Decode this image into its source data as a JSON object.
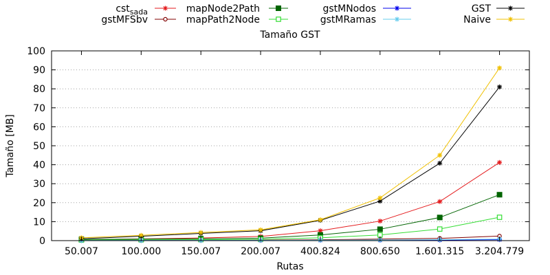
{
  "chart_data": {
    "type": "line",
    "title": "Tamaño GST",
    "xlabel": "Rutas",
    "ylabel": "Tamaño [MB]",
    "categories": [
      "50.007",
      "100.000",
      "150.007",
      "200.007",
      "400.824",
      "800.650",
      "1.601.315",
      "3.204.779"
    ],
    "ylim": [
      0,
      100
    ],
    "yticks": [
      0,
      10,
      20,
      30,
      40,
      50,
      60,
      70,
      80,
      90,
      100
    ],
    "grid": "y",
    "legend_position": "top",
    "series": [
      {
        "name": "cst_sada",
        "label_base": "cst",
        "label_sub": "sada",
        "color": "#e41a1c",
        "marker": "star",
        "values": [
          0.5,
          0.9,
          1.4,
          2.2,
          5.2,
          10.3,
          20.6,
          41.2
        ]
      },
      {
        "name": "gstMFSbv",
        "color": "#800000",
        "marker": "circle-open",
        "values": [
          0.1,
          0.15,
          0.2,
          0.25,
          0.5,
          0.8,
          1.2,
          2.4
        ]
      },
      {
        "name": "mapNode2Path",
        "color": "#006400",
        "marker": "square-filled",
        "values": [
          0.6,
          0.8,
          1.0,
          1.3,
          3.0,
          6.0,
          12.2,
          24.2
        ]
      },
      {
        "name": "mapPath2Node",
        "color": "#33dd33",
        "marker": "square-open",
        "values": [
          0.3,
          0.4,
          0.5,
          0.7,
          1.5,
          3.0,
          6.1,
          12.3
        ]
      },
      {
        "name": "gstMNodos",
        "color": "#0000ee",
        "marker": "star",
        "values": [
          0.05,
          0.08,
          0.1,
          0.12,
          0.15,
          0.2,
          0.3,
          0.5
        ]
      },
      {
        "name": "gstMRamas",
        "color": "#66ccee",
        "marker": "star",
        "values": [
          0.08,
          0.1,
          0.12,
          0.15,
          0.25,
          0.35,
          0.5,
          0.8
        ]
      },
      {
        "name": "GST",
        "color": "#000000",
        "marker": "star",
        "values": [
          1.0,
          2.3,
          3.8,
          5.2,
          10.7,
          20.8,
          40.8,
          81.0
        ]
      },
      {
        "name": "Naive",
        "color": "#f0c000",
        "marker": "star",
        "values": [
          1.5,
          2.8,
          4.3,
          5.7,
          11.0,
          22.5,
          45.0,
          91.0
        ]
      }
    ]
  }
}
